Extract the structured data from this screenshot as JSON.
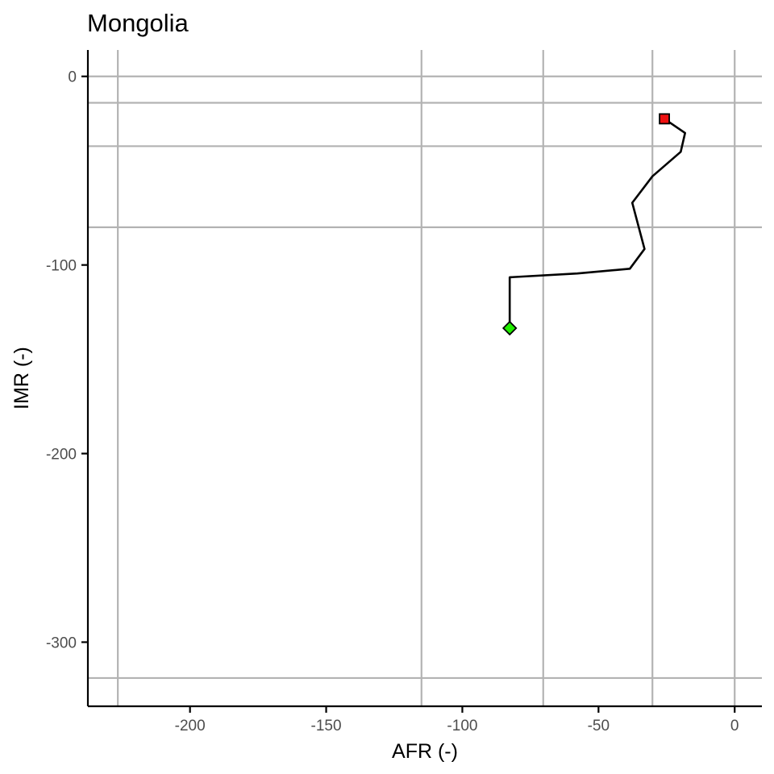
{
  "chart_data": {
    "type": "line",
    "title": "Mongolia",
    "xlabel": "AFR (-)",
    "ylabel": "IMR (-)",
    "xlim": [
      -237.5,
      10
    ],
    "ylim": [
      -334,
      14
    ],
    "x_ticks": [
      -200,
      -150,
      -100,
      -50,
      0
    ],
    "x_tick_labels": [
      "-200",
      "-150",
      "-100",
      "-50",
      "0"
    ],
    "y_ticks": [
      0,
      -100,
      -200,
      -300
    ],
    "y_tick_labels": [
      "0",
      "-100",
      "-200",
      "-300"
    ],
    "grid": false,
    "reference_lines": {
      "vertical_x": [
        -226.5,
        -115.0,
        -70.3,
        -30.2,
        0
      ],
      "horizontal_y": [
        0,
        -14,
        -37,
        -80,
        -319
      ]
    },
    "series": [
      {
        "x": [
          -82.6,
          -82.6,
          -82.6,
          -57.8,
          -38.5,
          -33.1,
          -37.6,
          -30.2,
          -19.8,
          -18.2,
          -25.8
        ],
        "y": [
          -133.5,
          -119,
          -106.5,
          -104.5,
          -102,
          -91.5,
          -67,
          -53,
          -40,
          -30,
          -22.5
        ],
        "color": "#000000"
      }
    ],
    "start_marker": {
      "x": -82.6,
      "y": -133.5,
      "shape": "diamond",
      "color": "#22ee00"
    },
    "end_marker": {
      "x": -25.8,
      "y": -22.5,
      "shape": "square",
      "color": "#ee1111"
    }
  }
}
